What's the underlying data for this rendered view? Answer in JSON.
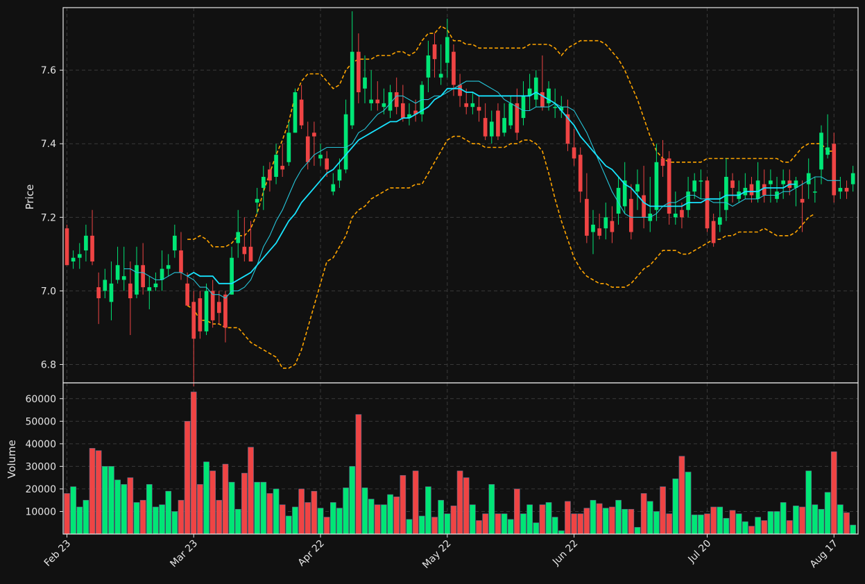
{
  "chart_data": {
    "type": "candlestick",
    "x_tick_labels": [
      "Feb 23",
      "Mar 23",
      "Apr 22",
      "May 22",
      "Jun 22",
      "Jul 20",
      "Aug 17"
    ],
    "x_tick_index": [
      0,
      20,
      40,
      60,
      80,
      101,
      121
    ],
    "price_panel": {
      "ylabel": "Price",
      "yticks": [
        6.8,
        7.0,
        7.2,
        7.4,
        7.6
      ],
      "ylim": [
        6.75,
        7.77
      ]
    },
    "volume_panel": {
      "ylabel": "Volume",
      "yticks": [
        10000,
        20000,
        30000,
        40000,
        50000,
        60000
      ],
      "ylim": [
        0,
        67000
      ]
    },
    "colors": {
      "background": "#111111",
      "up": "#00e676",
      "down": "#ef4444",
      "sma_fast": "#26c6da",
      "sma_slow": "#18e4ff",
      "bollinger": "#ffa500"
    },
    "ohlc_close": [
      7.07,
      7.09,
      7.1,
      7.15,
      7.08,
      6.98,
      7.03,
      7.02,
      7.07,
      7.04,
      6.98,
      7.07,
      7.01,
      7.01,
      7.02,
      7.06,
      7.07,
      7.15,
      7.05,
      6.96,
      6.87,
      6.89,
      7.0,
      6.92,
      6.94,
      6.9,
      7.09,
      7.16,
      7.1,
      7.08,
      7.25,
      7.31,
      7.3,
      7.37,
      7.33,
      7.43,
      7.54,
      7.45,
      7.35,
      7.42,
      7.37,
      7.33,
      7.29,
      7.33,
      7.48,
      7.65,
      7.54,
      7.58,
      7.52,
      7.51,
      7.51,
      7.54,
      7.5,
      7.47,
      7.48,
      7.48,
      7.56,
      7.64,
      7.63,
      7.59,
      7.69,
      7.56,
      7.53,
      7.5,
      7.51,
      7.49,
      7.42,
      7.46,
      7.42,
      7.47,
      7.51,
      7.43,
      7.53,
      7.55,
      7.58,
      7.5,
      7.55,
      7.5,
      7.5,
      7.4,
      7.36,
      7.27,
      7.15,
      7.18,
      7.15,
      7.2,
      7.16,
      7.28,
      7.3,
      7.16,
      7.29,
      7.2,
      7.21,
      7.35,
      7.34,
      7.21,
      7.21,
      7.2,
      7.27,
      7.3,
      7.3,
      7.17,
      7.13,
      7.2,
      7.31,
      7.28,
      7.27,
      7.28,
      7.26,
      7.3,
      7.26,
      7.3,
      7.27,
      7.3,
      7.28,
      7.3,
      7.24,
      7.32,
      7.27,
      7.43,
      7.39,
      7.26,
      7.28,
      7.27,
      7.32
    ],
    "ohlc_open": [
      7.17,
      7.08,
      7.09,
      7.11,
      7.15,
      7.01,
      7.0,
      6.97,
      7.03,
      7.03,
      7.02,
      6.99,
      7.07,
      7.0,
      7.01,
      7.03,
      7.06,
      7.11,
      7.11,
      7.02,
      6.97,
      6.98,
      6.89,
      7.0,
      6.97,
      6.99,
      6.99,
      7.13,
      7.12,
      7.12,
      7.24,
      7.28,
      7.33,
      7.31,
      7.34,
      7.35,
      7.43,
      7.52,
      7.42,
      7.43,
      7.36,
      7.36,
      7.27,
      7.3,
      7.33,
      7.45,
      7.65,
      7.55,
      7.51,
      7.52,
      7.5,
      7.49,
      7.54,
      7.51,
      7.47,
      7.49,
      7.48,
      7.58,
      7.67,
      7.58,
      7.62,
      7.65,
      7.56,
      7.51,
      7.5,
      7.5,
      7.47,
      7.42,
      7.49,
      7.43,
      7.45,
      7.51,
      7.47,
      7.53,
      7.52,
      7.54,
      7.51,
      7.5,
      7.49,
      7.48,
      7.39,
      7.37,
      7.25,
      7.16,
      7.17,
      7.17,
      7.19,
      7.21,
      7.23,
      7.25,
      7.27,
      7.26,
      7.19,
      7.22,
      7.36,
      7.36,
      7.2,
      7.22,
      7.22,
      7.27,
      7.3,
      7.3,
      7.19,
      7.18,
      7.22,
      7.3,
      7.25,
      7.26,
      7.29,
      7.25,
      7.29,
      7.29,
      7.25,
      7.29,
      7.3,
      7.28,
      7.25,
      7.29,
      7.27,
      7.33,
      7.37,
      7.4,
      7.27,
      7.28,
      7.29
    ],
    "ohlc_high": [
      7.18,
      7.11,
      7.13,
      7.18,
      7.22,
      7.05,
      7.06,
      7.08,
      7.12,
      7.12,
      7.08,
      7.12,
      7.13,
      7.04,
      7.05,
      7.11,
      7.1,
      7.18,
      7.16,
      7.05,
      7.0,
      7.0,
      7.02,
      7.03,
      7.0,
      7.0,
      7.12,
      7.22,
      7.2,
      7.19,
      7.28,
      7.34,
      7.35,
      7.4,
      7.4,
      7.46,
      7.55,
      7.56,
      7.46,
      7.46,
      7.4,
      7.38,
      7.32,
      7.36,
      7.52,
      7.76,
      7.7,
      7.64,
      7.6,
      7.57,
      7.55,
      7.56,
      7.58,
      7.56,
      7.51,
      7.52,
      7.57,
      7.68,
      7.7,
      7.67,
      7.74,
      7.67,
      7.59,
      7.55,
      7.54,
      7.53,
      7.51,
      7.49,
      7.51,
      7.51,
      7.53,
      7.55,
      7.57,
      7.59,
      7.6,
      7.64,
      7.57,
      7.55,
      7.53,
      7.52,
      7.44,
      7.39,
      7.32,
      7.22,
      7.21,
      7.24,
      7.23,
      7.31,
      7.35,
      7.29,
      7.33,
      7.34,
      7.31,
      7.4,
      7.41,
      7.38,
      7.27,
      7.24,
      7.31,
      7.32,
      7.33,
      7.31,
      7.21,
      7.27,
      7.36,
      7.32,
      7.3,
      7.32,
      7.31,
      7.35,
      7.33,
      7.33,
      7.31,
      7.33,
      7.33,
      7.31,
      7.3,
      7.36,
      7.31,
      7.45,
      7.48,
      7.43,
      7.31,
      7.3,
      7.34
    ],
    "ohlc_low": [
      7.07,
      7.06,
      7.06,
      7.08,
      7.07,
      6.91,
      6.98,
      6.92,
      7.02,
      7.0,
      6.88,
      6.98,
      6.99,
      6.95,
      7.0,
      7.0,
      7.04,
      7.09,
      7.03,
      6.96,
      6.74,
      6.87,
      6.88,
      6.9,
      6.91,
      6.86,
      6.99,
      7.09,
      7.08,
      7.08,
      7.21,
      7.22,
      7.27,
      7.29,
      7.31,
      7.34,
      7.43,
      7.44,
      7.33,
      7.34,
      7.34,
      7.31,
      7.26,
      7.28,
      7.32,
      7.44,
      7.51,
      7.51,
      7.49,
      7.49,
      7.48,
      7.47,
      7.48,
      7.46,
      7.45,
      7.46,
      7.46,
      7.54,
      7.58,
      7.56,
      7.58,
      7.53,
      7.5,
      7.48,
      7.48,
      7.46,
      7.41,
      7.4,
      7.41,
      7.42,
      7.44,
      7.41,
      7.45,
      7.49,
      7.5,
      7.49,
      7.49,
      7.47,
      7.47,
      7.38,
      7.34,
      7.24,
      7.13,
      7.1,
      7.14,
      7.14,
      7.13,
      7.18,
      7.21,
      7.14,
      7.22,
      7.17,
      7.16,
      7.19,
      7.31,
      7.18,
      7.18,
      7.17,
      7.2,
      7.25,
      7.25,
      7.16,
      7.12,
      7.16,
      7.19,
      7.24,
      7.24,
      7.25,
      7.24,
      7.24,
      7.24,
      7.24,
      7.24,
      7.25,
      7.26,
      7.23,
      7.16,
      7.25,
      7.24,
      7.29,
      7.36,
      7.24,
      7.25,
      7.25,
      7.27
    ],
    "volume": [
      18000,
      21000,
      12000,
      15000,
      38000,
      37000,
      30000,
      30000,
      24000,
      22000,
      25000,
      14000,
      15000,
      22000,
      12000,
      13000,
      19000,
      10000,
      15000,
      50000,
      63000,
      22000,
      32000,
      28000,
      15000,
      31000,
      23000,
      11000,
      27000,
      38500,
      23000,
      23000,
      18000,
      20000,
      13000,
      8000,
      12000,
      20000,
      14000,
      19000,
      11500,
      7500,
      14000,
      11500,
      20500,
      30000,
      53000,
      20500,
      15500,
      13000,
      13000,
      17500,
      16500,
      26000,
      6500,
      28000,
      8000,
      21000,
      7500,
      15000,
      9000,
      12500,
      28000,
      25000,
      13000,
      6000,
      9000,
      22000,
      9000,
      9000,
      6500,
      20000,
      9000,
      13000,
      5000,
      13000,
      14000,
      7500,
      1500,
      14500,
      9000,
      9000,
      11500,
      15000,
      13500,
      11500,
      12000,
      15000,
      11000,
      11000,
      3000,
      18000,
      14500,
      10000,
      21000,
      9000,
      24500,
      34500,
      27500,
      8500,
      8500,
      9000,
      12000,
      12000,
      7000,
      10500,
      9000,
      5500,
      3500,
      7500,
      6000,
      10000,
      10000,
      14000,
      6000,
      12500,
      12000,
      28000,
      13000,
      11000,
      18500,
      36500,
      13000,
      9500,
      4000
    ],
    "sma_fast": [
      null,
      null,
      null,
      null,
      null,
      null,
      null,
      null,
      null,
      7.06,
      7.06,
      7.05,
      7.05,
      7.04,
      7.03,
      7.03,
      7.04,
      7.05,
      7.05,
      7.04,
      7.03,
      7.01,
      7.01,
      6.99,
      6.99,
      6.98,
      7.0,
      7.0,
      7.01,
      7.03,
      7.07,
      7.12,
      7.15,
      7.19,
      7.22,
      7.26,
      7.3,
      7.33,
      7.35,
      7.37,
      7.38,
      7.39,
      7.39,
      7.39,
      7.39,
      7.4,
      7.43,
      7.44,
      7.46,
      7.48,
      7.49,
      7.51,
      7.53,
      7.53,
      7.52,
      7.51,
      7.52,
      7.52,
      7.53,
      7.53,
      7.54,
      7.55,
      7.56,
      7.57,
      7.57,
      7.57,
      7.56,
      7.55,
      7.54,
      7.52,
      7.51,
      7.5,
      7.49,
      7.49,
      7.5,
      7.5,
      7.5,
      7.51,
      7.5,
      7.5,
      7.49,
      7.46,
      7.43,
      7.39,
      7.35,
      7.31,
      7.27,
      7.24,
      7.21,
      7.2,
      7.2,
      7.2,
      7.2,
      7.21,
      7.23,
      7.24,
      7.24,
      7.25,
      7.26,
      7.26,
      7.25,
      7.25,
      7.24,
      7.24,
      7.24,
      7.23,
      7.24,
      7.25,
      7.25,
      7.25,
      7.26,
      7.26,
      7.26,
      7.27,
      7.27,
      7.28,
      7.29,
      7.3,
      7.31,
      7.31,
      7.3,
      7.3,
      7.3
    ],
    "sma_slow": [
      null,
      null,
      null,
      null,
      null,
      null,
      null,
      null,
      null,
      null,
      null,
      null,
      null,
      null,
      null,
      null,
      null,
      null,
      null,
      7.04,
      7.05,
      7.04,
      7.04,
      7.04,
      7.02,
      7.02,
      7.02,
      7.03,
      7.04,
      7.05,
      7.07,
      7.09,
      7.11,
      7.13,
      7.16,
      7.19,
      7.21,
      7.24,
      7.26,
      7.28,
      7.3,
      7.32,
      7.33,
      7.35,
      7.37,
      7.39,
      7.41,
      7.42,
      7.43,
      7.44,
      7.45,
      7.46,
      7.46,
      7.47,
      7.47,
      7.48,
      7.49,
      7.5,
      7.52,
      7.53,
      7.55,
      7.55,
      7.55,
      7.54,
      7.54,
      7.53,
      7.53,
      7.53,
      7.53,
      7.53,
      7.53,
      7.53,
      7.53,
      7.53,
      7.54,
      7.53,
      7.52,
      7.51,
      7.49,
      7.47,
      7.45,
      7.42,
      7.4,
      7.38,
      7.36,
      7.34,
      7.33,
      7.31,
      7.29,
      7.28,
      7.26,
      7.24,
      7.23,
      7.23,
      7.23,
      7.23,
      7.23,
      7.23,
      7.24,
      7.24,
      7.24,
      7.25,
      7.25,
      7.25,
      7.26,
      7.26,
      7.26,
      7.27,
      7.27,
      7.27,
      7.28,
      7.28,
      7.28,
      7.28,
      7.29,
      7.29
    ],
    "bb_upper": [
      null,
      null,
      null,
      null,
      null,
      null,
      null,
      null,
      null,
      null,
      null,
      null,
      null,
      null,
      null,
      null,
      null,
      null,
      null,
      7.14,
      7.14,
      7.15,
      7.14,
      7.12,
      7.12,
      7.12,
      7.13,
      7.15,
      7.15,
      7.17,
      7.21,
      7.27,
      7.32,
      7.37,
      7.41,
      7.46,
      7.53,
      7.57,
      7.59,
      7.59,
      7.59,
      7.57,
      7.55,
      7.56,
      7.6,
      7.62,
      7.63,
      7.63,
      7.63,
      7.64,
      7.64,
      7.64,
      7.65,
      7.65,
      7.64,
      7.65,
      7.68,
      7.7,
      7.7,
      7.72,
      7.71,
      7.68,
      7.68,
      7.67,
      7.67,
      7.66,
      7.66,
      7.66,
      7.66,
      7.66,
      7.66,
      7.66,
      7.66,
      7.67,
      7.67,
      7.67,
      7.67,
      7.66,
      7.64,
      7.66,
      7.67,
      7.68,
      7.68,
      7.68,
      7.68,
      7.67,
      7.65,
      7.63,
      7.6,
      7.56,
      7.52,
      7.47,
      7.42,
      7.38,
      7.36,
      7.35,
      7.35,
      7.35,
      7.35,
      7.35,
      7.35,
      7.36,
      7.36,
      7.36,
      7.36,
      7.36,
      7.36,
      7.36,
      7.36,
      7.36,
      7.36,
      7.36,
      7.36,
      7.35,
      7.35,
      7.37,
      7.39,
      7.4,
      7.4,
      7.4,
      7.38,
      7.38
    ],
    "bb_lower": [
      null,
      null,
      null,
      null,
      null,
      null,
      null,
      null,
      null,
      null,
      null,
      null,
      null,
      null,
      null,
      null,
      null,
      null,
      null,
      6.96,
      6.95,
      6.92,
      6.92,
      6.91,
      6.91,
      6.9,
      6.9,
      6.9,
      6.88,
      6.86,
      6.85,
      6.84,
      6.83,
      6.82,
      6.79,
      6.79,
      6.8,
      6.84,
      6.9,
      6.96,
      7.02,
      7.08,
      7.09,
      7.12,
      7.15,
      7.2,
      7.22,
      7.23,
      7.25,
      7.26,
      7.27,
      7.28,
      7.28,
      7.28,
      7.28,
      7.29,
      7.29,
      7.32,
      7.35,
      7.38,
      7.41,
      7.42,
      7.42,
      7.41,
      7.4,
      7.4,
      7.39,
      7.39,
      7.39,
      7.39,
      7.4,
      7.4,
      7.41,
      7.41,
      7.4,
      7.38,
      7.32,
      7.25,
      7.19,
      7.14,
      7.09,
      7.06,
      7.04,
      7.03,
      7.02,
      7.02,
      7.01,
      7.01,
      7.01,
      7.02,
      7.04,
      7.06,
      7.07,
      7.09,
      7.11,
      7.11,
      7.11,
      7.1,
      7.1,
      7.11,
      7.12,
      7.13,
      7.14,
      7.14,
      7.15,
      7.15,
      7.16,
      7.16,
      7.16,
      7.16,
      7.17,
      7.16,
      7.15,
      7.15,
      7.15,
      7.16,
      7.18,
      7.2,
      7.21
    ]
  }
}
